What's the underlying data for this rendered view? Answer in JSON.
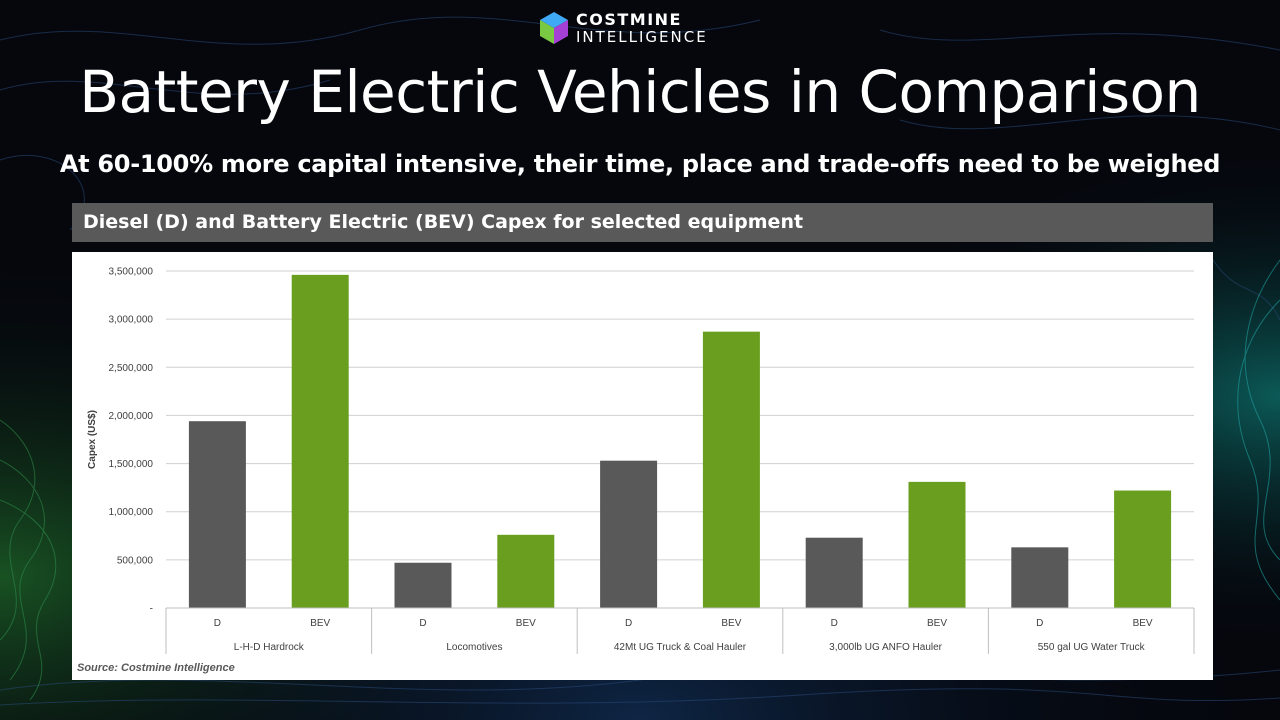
{
  "header": {
    "logo_line1": "COSTMINE",
    "logo_line2": "INTELLIGENCE",
    "title": "Battery Electric Vehicles in Comparison",
    "subtitle": "At 60-100% more capital intensive, their time, place and trade-offs need to be weighed"
  },
  "panel": {
    "heading": "Diesel (D) and Battery Electric (BEV) Capex for selected equipment",
    "source": "Source: Costmine Intelligence"
  },
  "colors": {
    "diesel": "#595959",
    "bev": "#6a9e1f",
    "grid": "#d0d0d0",
    "header_bar": "#595959"
  },
  "chart_data": {
    "type": "bar",
    "ylabel": "Capex (US$)",
    "ylim": [
      0,
      3500000
    ],
    "yticks": [
      {
        "value": 0,
        "label": "-"
      },
      {
        "value": 500000,
        "label": "500,000"
      },
      {
        "value": 1000000,
        "label": "1,000,000"
      },
      {
        "value": 1500000,
        "label": "1,500,000"
      },
      {
        "value": 2000000,
        "label": "2,000,000"
      },
      {
        "value": 2500000,
        "label": "2,500,000"
      },
      {
        "value": 3000000,
        "label": "3,000,000"
      },
      {
        "value": 3500000,
        "label": "3,500,000"
      }
    ],
    "grid": true,
    "legend": "none",
    "groups": [
      {
        "name": "L-H-D Hardrock",
        "bars": [
          {
            "label": "D",
            "value": 1940000
          },
          {
            "label": "BEV",
            "value": 3460000
          }
        ]
      },
      {
        "name": "Locomotives",
        "bars": [
          {
            "label": "D",
            "value": 470000
          },
          {
            "label": "BEV",
            "value": 760000
          }
        ]
      },
      {
        "name": "42Mt UG Truck & Coal Hauler",
        "bars": [
          {
            "label": "D",
            "value": 1530000
          },
          {
            "label": "BEV",
            "value": 2870000
          }
        ]
      },
      {
        "name": "3,000lb UG ANFO Hauler",
        "bars": [
          {
            "label": "D",
            "value": 730000
          },
          {
            "label": "BEV",
            "value": 1310000
          }
        ]
      },
      {
        "name": "550 gal UG Water Truck",
        "bars": [
          {
            "label": "D",
            "value": 630000
          },
          {
            "label": "BEV",
            "value": 1220000
          }
        ]
      }
    ]
  }
}
